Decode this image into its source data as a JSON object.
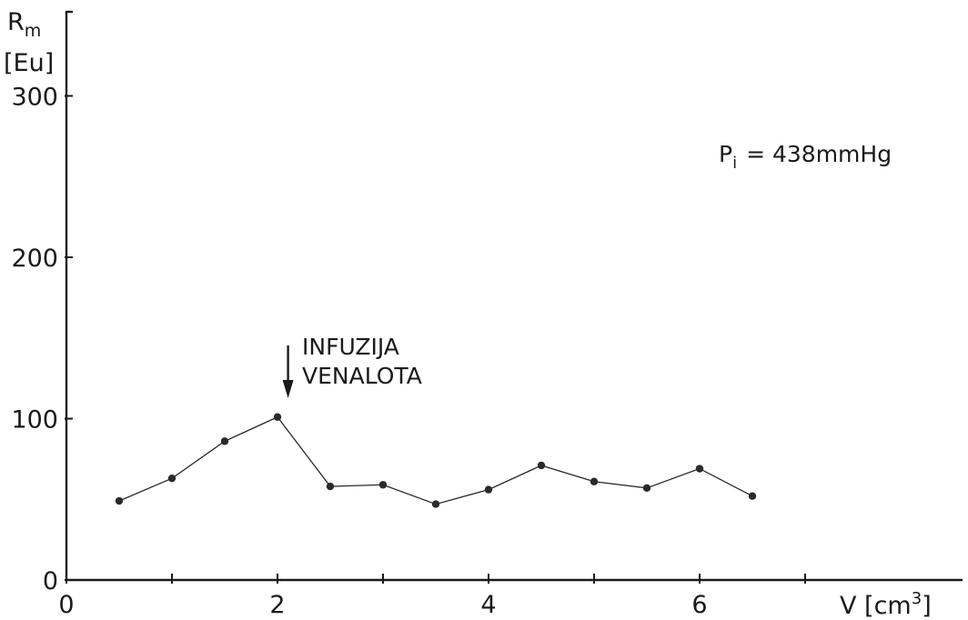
{
  "chart_data": {
    "type": "line",
    "ylabel_main": "R",
    "ylabel_sub": "m",
    "yunit": "[Eu]",
    "xlabel": "V [cm",
    "xlabel_sup": "3",
    "xlabel_close": "]",
    "xlim": [
      0,
      8.5
    ],
    "ylim": [
      0,
      330
    ],
    "x_ticks": [
      0,
      2,
      4,
      6
    ],
    "x_tick_labels": [
      "0",
      "2",
      "4",
      "6"
    ],
    "x_minor_ticks": [
      1,
      3,
      5,
      7
    ],
    "y_ticks": [
      0,
      100,
      200,
      300
    ],
    "y_tick_labels": [
      "0",
      "100",
      "200",
      "300"
    ],
    "grid": false,
    "series": [
      {
        "x": [
          0.5,
          1.0,
          1.5,
          2.0,
          2.5,
          3.0,
          3.5,
          4.0,
          4.5,
          5.0,
          5.5,
          6.0,
          6.5
        ],
        "y": [
          49,
          63,
          86,
          101,
          58,
          59,
          47,
          56,
          71,
          61,
          57,
          69,
          52
        ]
      }
    ],
    "annotations": {
      "condition_main": "P",
      "condition_sub": "i",
      "condition_rest": "= 438mmHg",
      "event_line1": "INFUZIJA",
      "event_line2": "VENALOTA",
      "event_x": 2.1
    }
  }
}
